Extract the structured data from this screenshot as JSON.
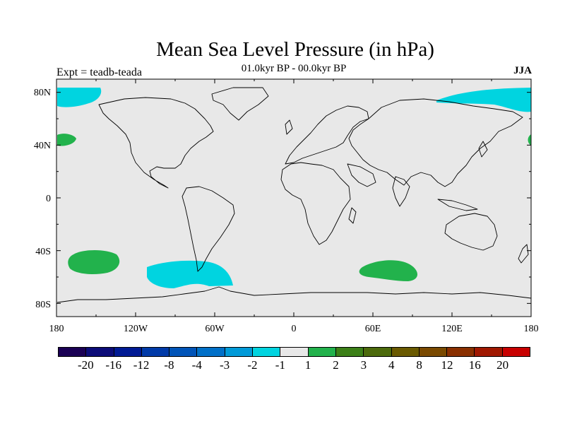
{
  "title": "Mean Sea Level Pressure (in hPa)",
  "left_label": "Expt = teadb-teada",
  "center_label": "01.0kyr BP - 00.0kyr BP",
  "right_label": "JJA",
  "map": {
    "background_color": "#e8e8e8",
    "lat_ticks": [
      "80N",
      "40N",
      "0",
      "40S",
      "80S"
    ],
    "lon_ticks": [
      "180",
      "120W",
      "60W",
      "0",
      "60E",
      "120E",
      "180"
    ],
    "anomalies": [
      {
        "name": "north-atlantic-arctic-negative",
        "level": "-1",
        "color": "#00d4e0"
      },
      {
        "name": "north-pacific-arctic-negative",
        "level": "-1",
        "color": "#00d4e0"
      },
      {
        "name": "north-pacific-positive",
        "level": "1",
        "color": "#22b24c"
      },
      {
        "name": "south-pacific-positive",
        "level": "1",
        "color": "#22b24c"
      },
      {
        "name": "drake-passage-negative",
        "level": "-1",
        "color": "#00d4e0"
      },
      {
        "name": "south-indian-positive",
        "level": "1",
        "color": "#22b24c"
      }
    ]
  },
  "colorbar": {
    "colors": [
      "#1a0054",
      "#0c0c78",
      "#001a94",
      "#003aa8",
      "#0054b8",
      "#0070c8",
      "#009ad8",
      "#00d4e0",
      "#e8e8e8",
      "#22b24c",
      "#3c8018",
      "#4c6a0c",
      "#6a5a00",
      "#7a4a00",
      "#8a3000",
      "#a01800",
      "#c80000"
    ],
    "labels": [
      "-20",
      "-16",
      "-12",
      "-8",
      "-4",
      "-3",
      "-2",
      "-1",
      "1",
      "2",
      "3",
      "4",
      "8",
      "12",
      "16",
      "20"
    ]
  }
}
